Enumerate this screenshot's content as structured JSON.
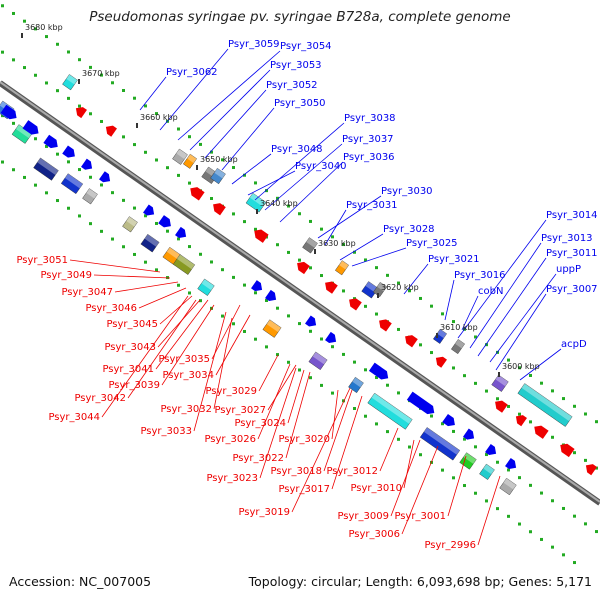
{
  "title": "Pseudomonas syringae pv. syringae B728a, complete genome",
  "footer": {
    "accession": "Accession: NC_007005",
    "stats": "Topology: circular; Length: 6,093,698 bp; Genes: 5,171"
  },
  "colors": {
    "forward": "#0000ee",
    "reverse": "#ee0000",
    "backbone": "#777777",
    "dots": "#22aa22"
  },
  "kbp_ticks": [
    {
      "label": "3680 kbp"
    },
    {
      "label": "3670 kbp"
    },
    {
      "label": "3660 kbp"
    },
    {
      "label": "3650 kbp"
    },
    {
      "label": "3640 kbp"
    },
    {
      "label": "3630 kbp"
    },
    {
      "label": "3620 kbp"
    },
    {
      "label": "3610 kbp"
    },
    {
      "label": "3600 kbp"
    }
  ],
  "forward_labels": [
    "Psyr_3059",
    "Psyr_3054",
    "Psyr_3053",
    "Psyr_3062",
    "Psyr_3052",
    "Psyr_3050",
    "Psyr_3038",
    "Psyr_3037",
    "Psyr_3048",
    "Psyr_3036",
    "Psyr_3040",
    "Psyr_3030",
    "Psyr_3031",
    "Psyr_3028",
    "Psyr_3025",
    "Psyr_3021",
    "Psyr_3016",
    "cobN",
    "Psyr_3014",
    "Psyr_3013",
    "Psyr_3011",
    "uppP",
    "Psyr_3007",
    "acpD"
  ],
  "reverse_labels": [
    "Psyr_3051",
    "Psyr_3049",
    "Psyr_3047",
    "Psyr_3046",
    "Psyr_3045",
    "Psyr_3043",
    "Psyr_3035",
    "Psyr_3041",
    "Psyr_3034",
    "Psyr_3039",
    "Psyr_3042",
    "Psyr_3029",
    "Psyr_3044",
    "Psyr_3032",
    "Psyr_3027",
    "Psyr_3033",
    "Psyr_3024",
    "Psyr_3026",
    "Psyr_3020",
    "Psyr_3022",
    "Psyr_3018",
    "Psyr_3012",
    "Psyr_3023",
    "Psyr_3017",
    "Psyr_3010",
    "Psyr_3019",
    "Psyr_3009",
    "Psyr_3001",
    "Psyr_3006",
    "Psyr_2996"
  ]
}
